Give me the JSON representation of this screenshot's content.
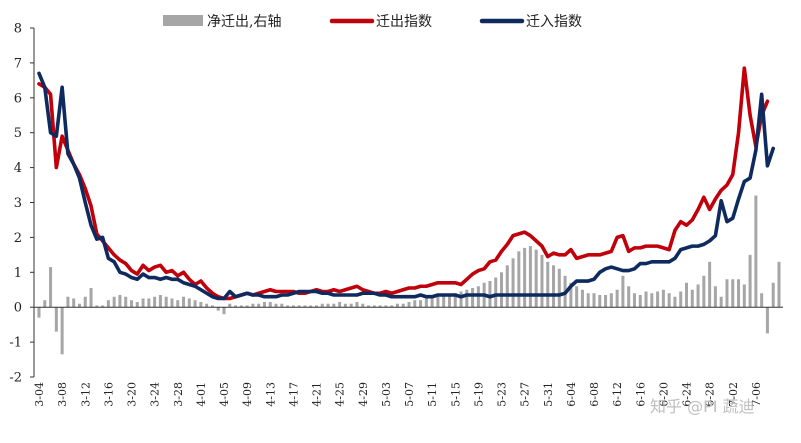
{
  "chart_data": {
    "type": "line",
    "title": "",
    "xlabel": "",
    "ylabel": "",
    "ylim": [
      -2,
      8
    ],
    "y_ticks": [
      8,
      7,
      6,
      5,
      4,
      3,
      2,
      1,
      0,
      -1,
      -2
    ],
    "y_tick_labels": [
      "8",
      "7",
      "6",
      "5",
      "4",
      "3",
      "2",
      "1",
      "0",
      "-1",
      "-2"
    ],
    "x_ticks": [
      {
        "index": 0,
        "label": "3-04"
      },
      {
        "index": 4,
        "label": "3-08"
      },
      {
        "index": 8,
        "label": "3-12"
      },
      {
        "index": 12,
        "label": "3-16"
      },
      {
        "index": 16,
        "label": "3-20"
      },
      {
        "index": 20,
        "label": "3-24"
      },
      {
        "index": 24,
        "label": "3-28"
      },
      {
        "index": 28,
        "label": "4-01"
      },
      {
        "index": 32,
        "label": "4-05"
      },
      {
        "index": 36,
        "label": "4-09"
      },
      {
        "index": 40,
        "label": "4-13"
      },
      {
        "index": 44,
        "label": "4-17"
      },
      {
        "index": 48,
        "label": "4-21"
      },
      {
        "index": 52,
        "label": "4-25"
      },
      {
        "index": 56,
        "label": "4-29"
      },
      {
        "index": 60,
        "label": "5-03"
      },
      {
        "index": 64,
        "label": "5-07"
      },
      {
        "index": 68,
        "label": "5-11"
      },
      {
        "index": 72,
        "label": "5-15"
      },
      {
        "index": 76,
        "label": "5-19"
      },
      {
        "index": 80,
        "label": "5-23"
      },
      {
        "index": 84,
        "label": "5-27"
      },
      {
        "index": 88,
        "label": "5-31"
      },
      {
        "index": 92,
        "label": "6-04"
      },
      {
        "index": 96,
        "label": "6-08"
      },
      {
        "index": 100,
        "label": "6-12"
      },
      {
        "index": 104,
        "label": "6-16"
      },
      {
        "index": 108,
        "label": "6-20"
      },
      {
        "index": 112,
        "label": "6-24"
      },
      {
        "index": 116,
        "label": "6-28"
      },
      {
        "index": 120,
        "label": "7-02"
      },
      {
        "index": 124,
        "label": "7-06"
      }
    ],
    "legend_position": "top-center",
    "grid": false,
    "series": [
      {
        "name": "净迁出,右轴",
        "kind": "bar",
        "color": "#a6a6a6",
        "values": [
          -0.3,
          0.2,
          1.15,
          -0.7,
          -1.35,
          0.3,
          0.25,
          0.1,
          0.3,
          0.55,
          0.05,
          0.05,
          0.2,
          0.3,
          0.35,
          0.3,
          0.2,
          0.15,
          0.25,
          0.25,
          0.3,
          0.35,
          0.3,
          0.25,
          0.2,
          0.3,
          0.25,
          0.2,
          0.15,
          0.1,
          0.05,
          -0.1,
          -0.2,
          0.1,
          0.05,
          0.05,
          0.05,
          0.1,
          0.1,
          0.15,
          0.15,
          0.1,
          0.1,
          0.05,
          0.05,
          0.05,
          0.05,
          0.05,
          0.05,
          0.1,
          0.1,
          0.1,
          0.15,
          0.1,
          0.1,
          0.15,
          0.1,
          0.05,
          0.05,
          0.05,
          0.05,
          0.05,
          0.1,
          0.1,
          0.15,
          0.2,
          0.2,
          0.25,
          0.3,
          0.3,
          0.35,
          0.35,
          0.4,
          0.45,
          0.5,
          0.55,
          0.6,
          0.7,
          0.75,
          0.85,
          1.0,
          1.2,
          1.4,
          1.6,
          1.7,
          1.75,
          1.65,
          1.5,
          1.3,
          1.2,
          1.1,
          0.9,
          0.7,
          0.6,
          0.5,
          0.4,
          0.4,
          0.35,
          0.35,
          0.4,
          0.5,
          0.9,
          0.6,
          0.4,
          0.35,
          0.45,
          0.4,
          0.45,
          0.5,
          0.4,
          0.3,
          0.45,
          0.7,
          0.5,
          0.65,
          0.9,
          1.3,
          0.6,
          0.3,
          0.8,
          0.8,
          0.8,
          0.65,
          1.5,
          3.2,
          0.4,
          -0.75,
          0.7,
          1.3
        ]
      },
      {
        "name": "迁出指数",
        "kind": "line",
        "color": "#c0000b",
        "values": [
          6.4,
          6.3,
          6.1,
          4.0,
          4.9,
          4.5,
          4.1,
          3.8,
          3.4,
          2.9,
          2.1,
          1.9,
          1.7,
          1.5,
          1.35,
          1.25,
          1.05,
          0.95,
          1.2,
          1.05,
          1.15,
          1.2,
          1.0,
          1.05,
          0.9,
          1.0,
          0.8,
          0.65,
          0.75,
          0.55,
          0.4,
          0.3,
          0.25,
          0.25,
          0.3,
          0.35,
          0.4,
          0.35,
          0.4,
          0.45,
          0.5,
          0.45,
          0.45,
          0.45,
          0.45,
          0.4,
          0.4,
          0.45,
          0.5,
          0.45,
          0.45,
          0.5,
          0.45,
          0.5,
          0.55,
          0.6,
          0.5,
          0.45,
          0.4,
          0.4,
          0.45,
          0.4,
          0.45,
          0.5,
          0.55,
          0.55,
          0.6,
          0.6,
          0.65,
          0.7,
          0.7,
          0.7,
          0.7,
          0.65,
          0.8,
          0.95,
          1.05,
          1.1,
          1.3,
          1.35,
          1.6,
          1.8,
          2.05,
          2.1,
          2.15,
          2.05,
          1.9,
          1.75,
          1.45,
          1.55,
          1.5,
          1.5,
          1.65,
          1.4,
          1.45,
          1.5,
          1.5,
          1.5,
          1.55,
          1.6,
          2.0,
          2.05,
          1.6,
          1.7,
          1.7,
          1.75,
          1.75,
          1.75,
          1.7,
          1.65,
          2.2,
          2.45,
          2.35,
          2.5,
          2.8,
          3.15,
          2.8,
          3.1,
          3.35,
          3.5,
          3.8,
          5.0,
          6.85,
          5.5,
          4.6,
          5.5,
          5.9
        ]
      },
      {
        "name": "迁入指数",
        "kind": "line",
        "color": "#0e2a5e",
        "values": [
          6.7,
          6.3,
          5.0,
          4.9,
          6.3,
          4.4,
          4.1,
          3.7,
          3.0,
          2.35,
          1.95,
          2.0,
          1.4,
          1.3,
          1.0,
          0.95,
          0.85,
          0.8,
          0.95,
          0.85,
          0.85,
          0.8,
          0.85,
          0.8,
          0.8,
          0.7,
          0.65,
          0.6,
          0.5,
          0.4,
          0.3,
          0.25,
          0.25,
          0.45,
          0.3,
          0.35,
          0.4,
          0.35,
          0.35,
          0.3,
          0.3,
          0.3,
          0.35,
          0.35,
          0.4,
          0.45,
          0.45,
          0.45,
          0.45,
          0.4,
          0.4,
          0.35,
          0.35,
          0.35,
          0.35,
          0.35,
          0.4,
          0.4,
          0.4,
          0.35,
          0.35,
          0.3,
          0.3,
          0.3,
          0.3,
          0.3,
          0.35,
          0.3,
          0.3,
          0.35,
          0.35,
          0.35,
          0.35,
          0.3,
          0.35,
          0.35,
          0.35,
          0.35,
          0.3,
          0.35,
          0.35,
          0.35,
          0.35,
          0.35,
          0.35,
          0.35,
          0.35,
          0.35,
          0.35,
          0.35,
          0.35,
          0.4,
          0.6,
          0.75,
          0.75,
          0.75,
          0.8,
          1.0,
          1.1,
          1.15,
          1.1,
          1.05,
          1.05,
          1.1,
          1.25,
          1.25,
          1.3,
          1.3,
          1.3,
          1.3,
          1.4,
          1.65,
          1.7,
          1.75,
          1.75,
          1.8,
          1.9,
          2.05,
          3.05,
          2.45,
          2.55,
          3.1,
          3.6,
          3.7,
          4.5,
          6.1,
          4.05,
          4.55
        ]
      }
    ]
  },
  "watermark": "知乎 @PI 蔬迪"
}
